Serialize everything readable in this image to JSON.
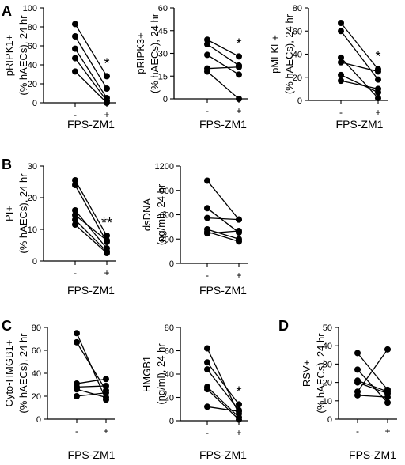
{
  "chart_data": [
    {
      "id": "pripk1",
      "panel_label": "A",
      "type": "scatter",
      "title": "",
      "ylabel": [
        "pRIPK1+",
        "(% hAECs), 24 hr"
      ],
      "ylim": [
        0,
        100
      ],
      "yticks": [
        "0",
        "20",
        "40",
        "60",
        "80",
        "100"
      ],
      "categories": [
        "-",
        "+"
      ],
      "xlabel": "FPS-ZM1",
      "significance": "*",
      "pairs": [
        [
          83,
          28
        ],
        [
          70,
          15
        ],
        [
          57,
          5
        ],
        [
          47,
          2
        ],
        [
          33,
          0
        ]
      ]
    },
    {
      "id": "pripk3",
      "panel_label": "",
      "type": "scatter",
      "title": "",
      "ylabel": [
        "pRIPK3+",
        "(% hAECs), 24 hr"
      ],
      "ylim": [
        0,
        60
      ],
      "yticks": [
        "0",
        "15",
        "30",
        "45",
        "60"
      ],
      "categories": [
        "-",
        "+"
      ],
      "xlabel": "FPS-ZM1",
      "significance": "*",
      "pairs": [
        [
          39,
          28
        ],
        [
          36,
          22
        ],
        [
          29,
          16
        ],
        [
          20,
          21
        ],
        [
          18,
          0
        ]
      ]
    },
    {
      "id": "pmlkl",
      "panel_label": "",
      "type": "scatter",
      "title": "",
      "ylabel": [
        "pMLKL+",
        "(% hAECs), 24 hr"
      ],
      "ylim": [
        0,
        80
      ],
      "yticks": [
        "0",
        "20",
        "40",
        "60",
        "80"
      ],
      "categories": [
        "-",
        "+"
      ],
      "xlabel": "FPS-ZM1",
      "significance": "*",
      "pairs": [
        [
          67,
          27
        ],
        [
          60,
          18
        ],
        [
          37,
          2
        ],
        [
          33,
          25
        ],
        [
          22,
          7
        ],
        [
          17,
          10
        ]
      ]
    },
    {
      "id": "pi",
      "panel_label": "B",
      "type": "scatter",
      "title": "",
      "ylabel": [
        "PI+",
        "(% hAECs), 24 hr"
      ],
      "ylim": [
        0,
        30
      ],
      "yticks": [
        "0",
        "10",
        "20",
        "30"
      ],
      "categories": [
        "-",
        "+"
      ],
      "xlabel": "FPS-ZM1",
      "significance": "**",
      "pairs": [
        [
          25.5,
          8
        ],
        [
          24,
          6
        ],
        [
          16,
          4
        ],
        [
          14.5,
          6.5
        ],
        [
          13,
          3
        ],
        [
          11.5,
          2.5
        ]
      ]
    },
    {
      "id": "dsdna",
      "panel_label": "",
      "type": "scatter",
      "title": "",
      "ylabel": [
        "dsDNA",
        "(ng/ml), 24 hr"
      ],
      "ylim": [
        0,
        1200
      ],
      "yticks": [
        "0",
        "300",
        "600",
        "900",
        "1200"
      ],
      "categories": [
        "-",
        "+"
      ],
      "xlabel": "FPS-ZM1",
      "significance": "",
      "pairs": [
        [
          1020,
          540
        ],
        [
          680,
          380
        ],
        [
          560,
          540
        ],
        [
          420,
          300
        ],
        [
          390,
          270
        ],
        [
          370,
          400
        ]
      ]
    },
    {
      "id": "cyto_hmgb1",
      "panel_label": "C",
      "type": "scatter",
      "title": "",
      "ylabel": [
        "Cyto-HMGB1+",
        "(% hAECs), 24 hr"
      ],
      "ylim": [
        0,
        80
      ],
      "yticks": [
        "0",
        "20",
        "40",
        "60",
        "80"
      ],
      "categories": [
        "-",
        "+"
      ],
      "xlabel": "FPS-ZM1",
      "significance": "",
      "pairs": [
        [
          75,
          17
        ],
        [
          67,
          25
        ],
        [
          31,
          35
        ],
        [
          28,
          29
        ],
        [
          26,
          19
        ],
        [
          20,
          23
        ]
      ]
    },
    {
      "id": "hmgb1",
      "panel_label": "",
      "type": "scatter",
      "title": "",
      "ylabel": [
        "HMGB1",
        "(ng/ml), 24 hr"
      ],
      "ylim": [
        0,
        80
      ],
      "yticks": [
        "0",
        "20",
        "40",
        "60",
        "80"
      ],
      "categories": [
        "-",
        "+"
      ],
      "xlabel": "FPS-ZM1",
      "significance": "*",
      "pairs": [
        [
          62,
          6
        ],
        [
          50,
          14
        ],
        [
          44,
          9
        ],
        [
          29,
          3
        ],
        [
          27,
          1
        ],
        [
          12,
          8
        ]
      ]
    },
    {
      "id": "rsv",
      "panel_label": "D",
      "type": "scatter",
      "title": "",
      "ylabel": [
        "RSV+",
        "(% hAECs), 24 hr"
      ],
      "ylim": [
        0,
        50
      ],
      "yticks": [
        "0",
        "10",
        "20",
        "30",
        "40",
        "50"
      ],
      "categories": [
        "-",
        "+"
      ],
      "xlabel": "FPS-ZM1",
      "significance": "",
      "pairs": [
        [
          36,
          16
        ],
        [
          27,
          9
        ],
        [
          21,
          15
        ],
        [
          20,
          14
        ],
        [
          15,
          38
        ],
        [
          13,
          12
        ]
      ]
    }
  ]
}
